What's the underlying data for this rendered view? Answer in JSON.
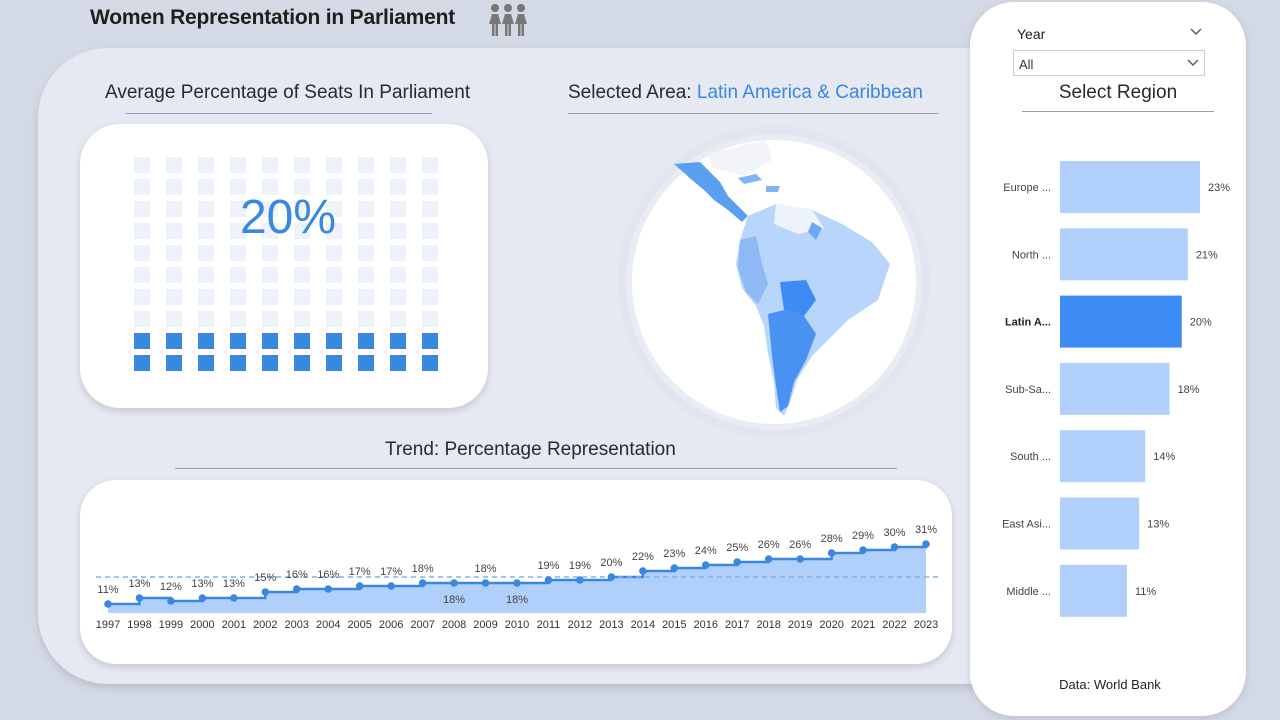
{
  "header": {
    "title": "Women Representation in Parliament",
    "icon": "women-group-icon"
  },
  "kpi": {
    "section_label": "Average Percentage of Seats In Parliament",
    "value": "20%",
    "fraction": 0.2
  },
  "map": {
    "section_prefix": "Selected Area: ",
    "selected_area": "Latin America & Caribbean",
    "icon": "latin-america-map-icon"
  },
  "trend": {
    "section_label": "Trend: Percentage Representation"
  },
  "filters": {
    "year_label": "Year",
    "year_value": "All",
    "region_title": "Select Region"
  },
  "footer": {
    "source": "Data: World Bank"
  },
  "colors": {
    "accent": "#3a87e0",
    "bar_light": "#b0d0fb",
    "bar_selected": "#3d8cf5",
    "area_fill": "#b0d0fb",
    "waffle_empty": "#eef3fb"
  },
  "chart_data": [
    {
      "type": "line",
      "x": [
        "1997",
        "1998",
        "1999",
        "2000",
        "2001",
        "2002",
        "2003",
        "2004",
        "2005",
        "2006",
        "2007",
        "2008",
        "2009",
        "2010",
        "2011",
        "2012",
        "2013",
        "2014",
        "2015",
        "2016",
        "2017",
        "2018",
        "2019",
        "2020",
        "2021",
        "2022",
        "2023"
      ],
      "values": [
        11,
        13,
        12,
        13,
        13,
        15,
        16,
        16,
        17,
        17,
        18,
        18,
        18,
        18,
        19,
        19,
        20,
        22,
        23,
        24,
        25,
        26,
        26,
        28,
        29,
        30,
        31
      ],
      "data_labels": [
        "11%",
        "13%",
        "12%",
        "13%",
        "13%",
        "15%",
        "16%",
        "16%",
        "17%",
        "17%",
        "18%",
        "18%",
        "18%",
        "18%",
        "19%",
        "19%",
        "20%",
        "22%",
        "23%",
        "24%",
        "25%",
        "26%",
        "26%",
        "28%",
        "29%",
        "30%",
        "31%"
      ],
      "average_line": 20,
      "step": true,
      "area": true
    },
    {
      "type": "bar",
      "orientation": "horizontal",
      "categories": [
        "Europe ...",
        "North ...",
        "Latin A...",
        "Sub-Sa...",
        "South ...",
        "East Asi...",
        "Middle ..."
      ],
      "values": [
        23,
        21,
        20,
        18,
        14,
        13,
        11
      ],
      "data_labels": [
        "23%",
        "21%",
        "20%",
        "18%",
        "14%",
        "13%",
        "11%"
      ],
      "selected": "Latin A..."
    }
  ]
}
